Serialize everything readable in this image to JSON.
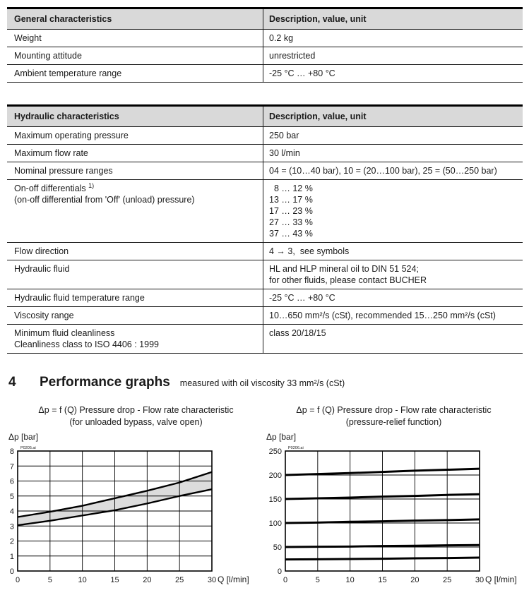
{
  "tables": [
    {
      "header": {
        "col1": "General characteristics",
        "col2": "Description, value, unit"
      },
      "rows": [
        {
          "label": [
            "Weight"
          ],
          "value": [
            "0.2 kg"
          ]
        },
        {
          "label": [
            "Mounting attitude"
          ],
          "value": [
            "unrestricted"
          ]
        },
        {
          "label": [
            "Ambient temperature range"
          ],
          "value": [
            "-25 °C … +80 °C"
          ]
        }
      ]
    },
    {
      "header": {
        "col1": "Hydraulic characteristics",
        "col2": "Description, value, unit"
      },
      "rows": [
        {
          "label": [
            "Maximum operating pressure"
          ],
          "value": [
            "250 bar"
          ]
        },
        {
          "label": [
            "Maximum flow rate"
          ],
          "value": [
            "30 l/min"
          ]
        },
        {
          "label": [
            "Nominal pressure ranges"
          ],
          "value": [
            "04 = (10…40 bar), 10 = (20…100 bar), 25 = (50…250 bar)"
          ]
        },
        {
          "label": [
            "On-off differentials",
            "(on-off differential from 'Off' (unload) pressure)"
          ],
          "label_sup": "1)",
          "value": [
            "  8 … 12 %",
            "13 … 17 %",
            "17 … 23 %",
            "27 … 33 %",
            "37 … 43 %"
          ]
        },
        {
          "label": [
            "Flow direction"
          ],
          "value": [
            "4 → 3,  see symbols"
          ]
        },
        {
          "label": [
            "Hydraulic fluid"
          ],
          "value": [
            "HL and HLP mineral oil to DIN 51 524;",
            "for other fluids, please contact BUCHER"
          ]
        },
        {
          "label": [
            "Hydraulic fluid temperature range"
          ],
          "value": [
            "-25 °C … +80 °C"
          ]
        },
        {
          "label": [
            "Viscosity range"
          ],
          "value": [
            "10…650 mm²/s (cSt), recommended 15…250 mm²/s (cSt)"
          ]
        },
        {
          "label": [
            "Minimum fluid cleanliness",
            "Cleanliness class to ISO 4406 : 1999"
          ],
          "value": [
            "class 20/18/15"
          ]
        }
      ]
    }
  ],
  "section": {
    "number": "4",
    "title": "Performance graphs",
    "subtitle": "measured with oil viscosity 33 mm²/s (cSt)"
  },
  "chart_data": [
    {
      "type": "area",
      "title": "Δp = f (Q) Pressure drop - Flow rate characteristic",
      "subtitle": "(for unloaded bypass, valve open)",
      "ylabel": "Δp [bar]",
      "xlabel": "Q [l/min]",
      "file_label": "P0205.ai",
      "x": [
        0,
        5,
        10,
        15,
        20,
        25,
        30
      ],
      "series": [
        {
          "name": "upper-tolerance",
          "values": [
            3.6,
            3.95,
            4.35,
            4.85,
            5.35,
            5.9,
            6.6
          ]
        },
        {
          "name": "lower-tolerance",
          "values": [
            3.05,
            3.35,
            3.7,
            4.05,
            4.5,
            5.0,
            5.45
          ]
        }
      ],
      "band_fill": "#dcdcdc",
      "xlim": [
        0,
        30
      ],
      "ylim": [
        0,
        8
      ],
      "xticks": [
        0,
        5,
        10,
        15,
        20,
        25,
        30
      ],
      "yticks": [
        0,
        1,
        2,
        3,
        4,
        5,
        6,
        7,
        8
      ],
      "grid": true,
      "legend": "none"
    },
    {
      "type": "line",
      "title": "Δp = f (Q) Pressure drop - Flow rate characteristic",
      "subtitle": "(pressure-relief function)",
      "ylabel": "Δp [bar]",
      "xlabel": "Q [l/min]",
      "file_label": "P0206.ai",
      "x": [
        0,
        5,
        10,
        15,
        20,
        25,
        30
      ],
      "series": [
        {
          "name": "curve-1",
          "values": [
            200,
            202,
            204,
            206.5,
            209,
            211,
            213
          ]
        },
        {
          "name": "curve-2",
          "values": [
            150,
            151.5,
            153,
            155,
            156.5,
            158.5,
            160
          ]
        },
        {
          "name": "curve-3",
          "values": [
            100,
            101,
            102.5,
            103.5,
            105,
            106,
            107.5
          ]
        },
        {
          "name": "curve-4",
          "values": [
            50,
            50.5,
            51,
            52,
            52.5,
            53.5,
            54
          ]
        },
        {
          "name": "curve-5",
          "values": [
            24,
            24.5,
            25,
            25.5,
            26.5,
            27,
            28
          ]
        }
      ],
      "xlim": [
        0,
        30
      ],
      "ylim": [
        0,
        250
      ],
      "xticks": [
        0,
        5,
        10,
        15,
        20,
        25,
        30
      ],
      "yticks": [
        0,
        50,
        100,
        150,
        200,
        250
      ],
      "grid": true,
      "legend": "none"
    }
  ]
}
